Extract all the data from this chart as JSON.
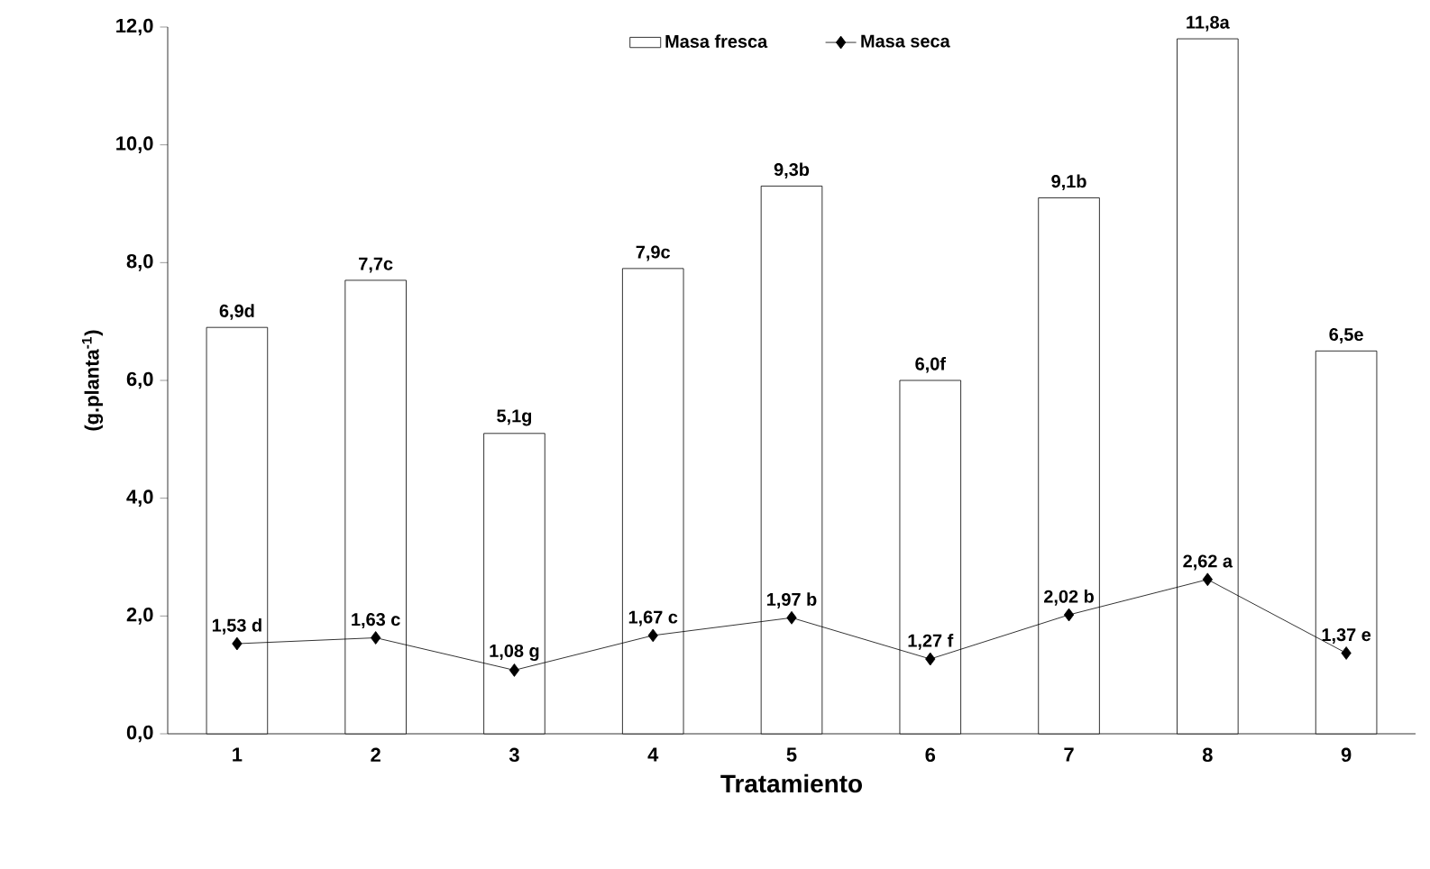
{
  "chart_data": {
    "type": "bar",
    "xlabel": "Tratamiento",
    "ylabel": "(g.planta$^{-1}$)",
    "categories": [
      "1",
      "2",
      "3",
      "4",
      "5",
      "6",
      "7",
      "8",
      "9"
    ],
    "series": [
      {
        "name": "Masa fresca",
        "color": "#000000",
        "values": [
          6.9,
          7.7,
          5.1,
          7.9,
          9.3,
          6.0,
          9.1,
          11.8,
          6.5
        ],
        "value_labels": [
          "6,9d",
          "7,7c",
          "5,1g",
          "7,9c",
          "9,3b",
          "6,0f",
          "9,1b",
          "11,8a",
          "6,5e"
        ]
      },
      {
        "name": "Masa seca",
        "type": "line",
        "color": "#000000",
        "marker": "diamond",
        "values": [
          1.53,
          1.63,
          1.08,
          1.67,
          1.97,
          1.27,
          2.02,
          2.62,
          1.37
        ],
        "value_labels": [
          "1,53 d",
          "1,63 c",
          "1,08 g",
          "1,67 c",
          "1,97 b",
          "1,27 f",
          "2,02 b",
          "2,62 a",
          "1,37 e"
        ]
      }
    ],
    "ylim": [
      0,
      12
    ],
    "yticks": [
      {
        "value": 0,
        "label": "0,0"
      },
      {
        "value": 2,
        "label": "2,0"
      },
      {
        "value": 4,
        "label": "4,0"
      },
      {
        "value": 6,
        "label": "6,0"
      },
      {
        "value": 8,
        "label": "8,0"
      },
      {
        "value": 10,
        "label": "10,0"
      },
      {
        "value": 12,
        "label": "12,0"
      }
    ],
    "legend": "top"
  }
}
